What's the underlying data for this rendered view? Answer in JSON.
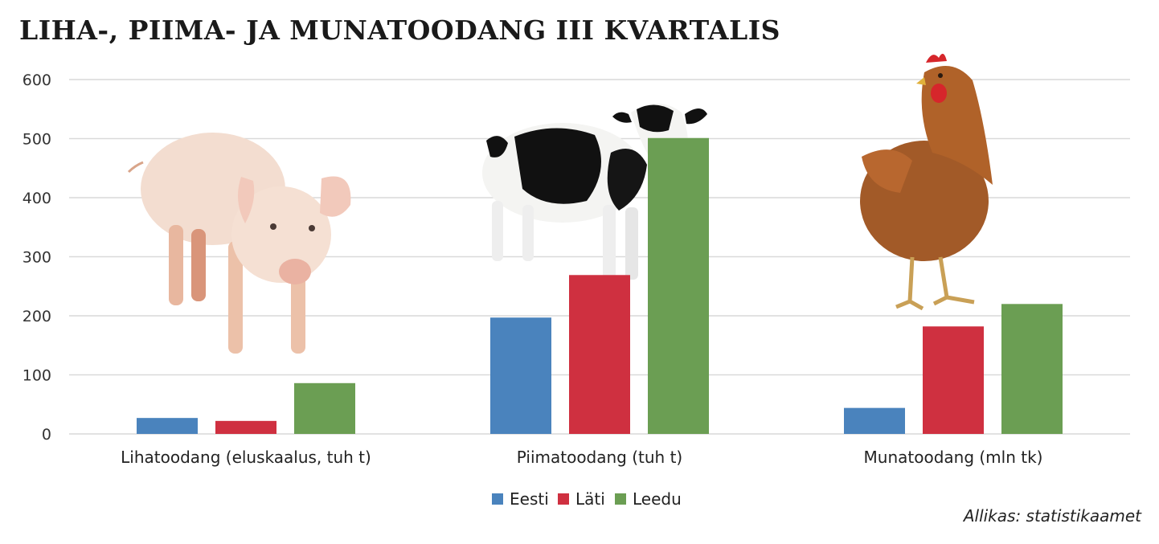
{
  "chart_data": {
    "type": "bar",
    "title": "LIHA-, PIIMA- JA MUNATOODANG III  KVARTALIS",
    "categories": [
      "Lihatoodang (eluskaalus, tuh t)",
      "Piimatoodang (tuh t)",
      "Munatoodang (mln tk)"
    ],
    "series": [
      {
        "name": "Eesti",
        "color": "#4a83bd",
        "values": [
          27,
          197,
          44
        ]
      },
      {
        "name": "Läti",
        "color": "#cf3040",
        "values": [
          22,
          269,
          182
        ]
      },
      {
        "name": "Leedu",
        "color": "#6b9e53",
        "values": [
          86,
          501,
          220
        ]
      }
    ],
    "ylim": [
      0,
      600
    ],
    "yticks": [
      0,
      100,
      200,
      300,
      400,
      500,
      600
    ],
    "grid": true,
    "legend": "bottom-center",
    "source": "Allikas: statistikaamet",
    "illustrations": [
      "pig-illustration",
      "cow-illustration",
      "chicken-illustration"
    ]
  }
}
